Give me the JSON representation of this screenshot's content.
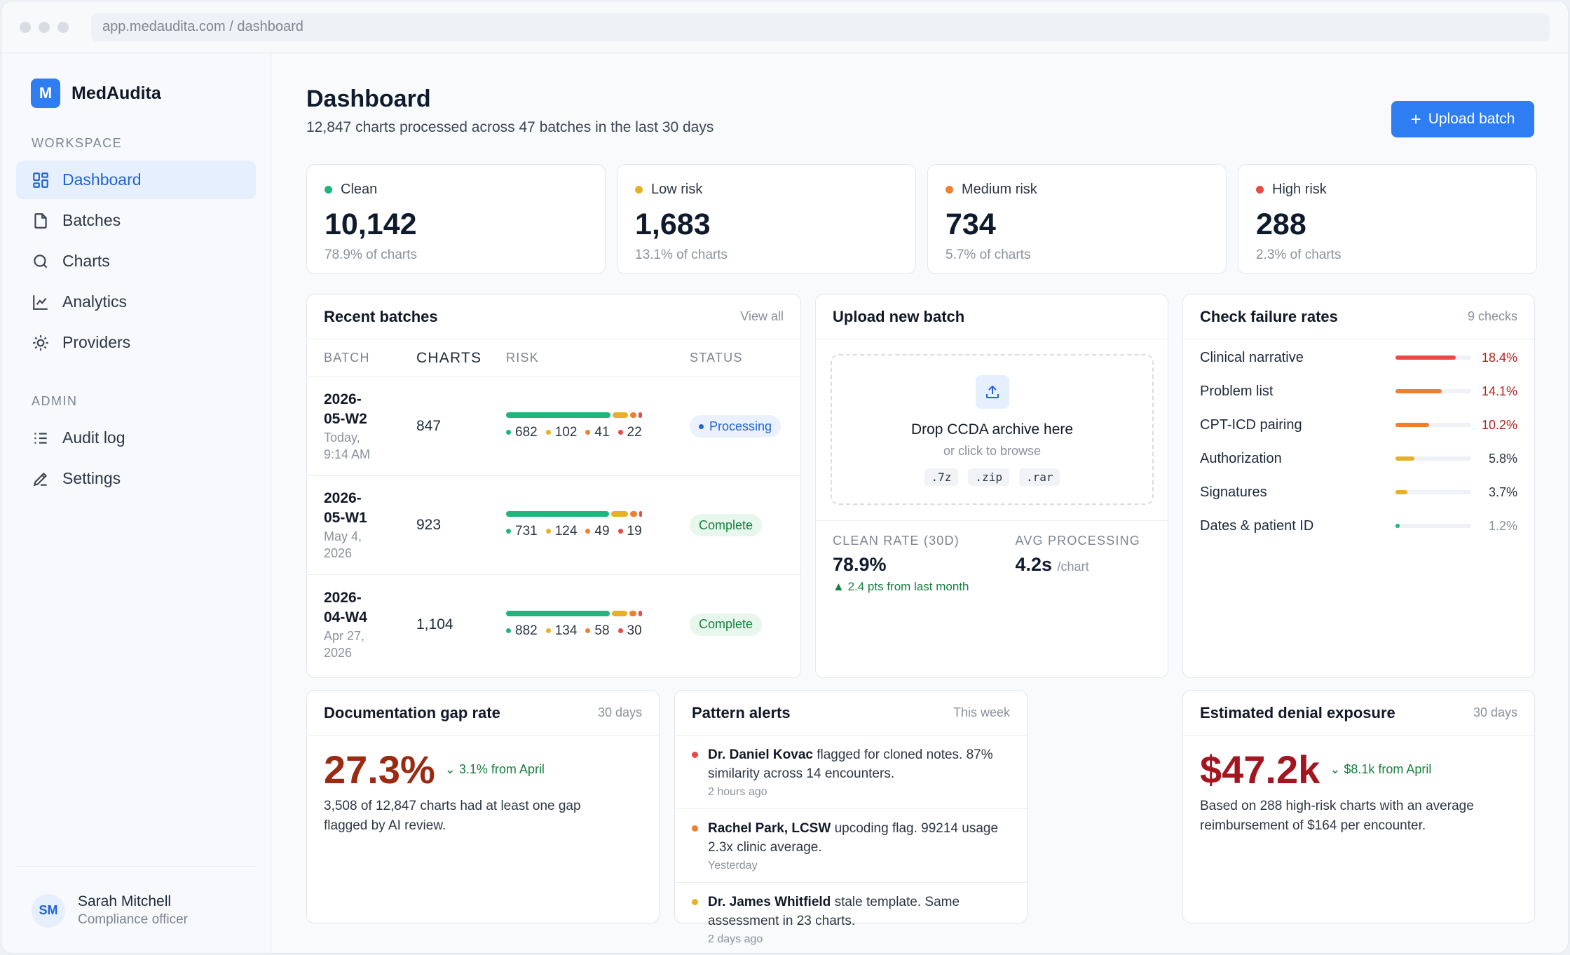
{
  "browser": {
    "url": "app.medaudita.com / dashboard"
  },
  "brand": {
    "logo_letter": "M",
    "name": "MedAudita"
  },
  "sidebar": {
    "workspace_label": "WORKSPACE",
    "admin_label": "ADMIN",
    "items": [
      {
        "label": "Dashboard",
        "icon": "grid-icon"
      },
      {
        "label": "Batches",
        "icon": "file-icon"
      },
      {
        "label": "Charts",
        "icon": "search-icon"
      },
      {
        "label": "Analytics",
        "icon": "line-chart-icon"
      },
      {
        "label": "Providers",
        "icon": "sun-icon"
      }
    ],
    "admin_items": [
      {
        "label": "Audit log",
        "icon": "list-icon"
      },
      {
        "label": "Settings",
        "icon": "pencil-icon"
      }
    ],
    "user": {
      "initials": "SM",
      "name": "Sarah Mitchell",
      "role": "Compliance officer"
    }
  },
  "header": {
    "title": "Dashboard",
    "subtitle": "12,847 charts processed across 47 batches in the last 30 days",
    "upload_label": "Upload batch",
    "upload_icon": "plus-icon"
  },
  "stats": [
    {
      "label": "Clean",
      "value": "10,142",
      "pct": "78.9% of charts",
      "color": "#1fb57c"
    },
    {
      "label": "Low risk",
      "value": "1,683",
      "pct": "13.1% of charts",
      "color": "#e6b124"
    },
    {
      "label": "Medium risk",
      "value": "734",
      "pct": "5.7% of charts",
      "color": "#f07f2c"
    },
    {
      "label": "High risk",
      "value": "288",
      "pct": "2.3% of charts",
      "color": "#e84a45"
    }
  ],
  "recent_batches": {
    "title": "Recent batches",
    "view_all": "View all",
    "columns": [
      "BATCH",
      "CHARTS",
      "RISK",
      "STATUS"
    ],
    "rows": [
      {
        "id": "2026-05-W2",
        "id_line1": "2026-",
        "id_line2": "05-W2",
        "date_line1": "Today,",
        "date_line2": "9:14 AM",
        "charts": "847",
        "clean": "682",
        "low": "102",
        "med": "41",
        "high": "22",
        "status": "Processing"
      },
      {
        "id": "2026-05-W1",
        "id_line1": "2026-",
        "id_line2": "05-W1",
        "date_line1": "May 4,",
        "date_line2": "2026",
        "charts": "923",
        "clean": "731",
        "low": "124",
        "med": "49",
        "high": "19",
        "status": "Complete"
      },
      {
        "id": "2026-04-W4",
        "id_line1": "2026-",
        "id_line2": "04-W4",
        "date_line1": "Apr 27,",
        "date_line2": "2026",
        "charts": "1,104",
        "clean": "882",
        "low": "134",
        "med": "58",
        "high": "30",
        "status": "Complete"
      }
    ]
  },
  "upload": {
    "title": "Upload new batch",
    "drop_title": "Drop CCDA archive here",
    "drop_sub": "or click to browse",
    "extensions": [
      ".7z",
      ".zip",
      ".rar"
    ],
    "clean_rate_label": "CLEAN RATE (30D)",
    "clean_rate_value": "78.9%",
    "clean_rate_delta": "2.4 pts from last month",
    "avg_label": "AVG PROCESSING",
    "avg_value": "4.2s",
    "avg_unit": "/chart"
  },
  "checks": {
    "title": "Check failure rates",
    "meta": "9 checks",
    "items": [
      {
        "name": "Clinical narrative",
        "value": "18.4%",
        "fraction": 0.184,
        "color": "#e84a45",
        "text_color": "#b4231f"
      },
      {
        "name": "Problem list",
        "value": "14.1%",
        "fraction": 0.141,
        "color": "#f07f2c",
        "text_color": "#b4231f"
      },
      {
        "name": "CPT-ICD pairing",
        "value": "10.2%",
        "fraction": 0.102,
        "color": "#f07f2c",
        "text_color": "#b4231f"
      },
      {
        "name": "Authorization",
        "value": "5.8%",
        "fraction": 0.058,
        "color": "#e6b124",
        "text_color": "#2d3644"
      },
      {
        "name": "Signatures",
        "value": "3.7%",
        "fraction": 0.037,
        "color": "#e6b124",
        "text_color": "#2d3644"
      },
      {
        "name": "Dates & patient ID",
        "value": "1.2%",
        "fraction": 0.012,
        "color": "#1fb57c",
        "text_color": "#8a919c"
      }
    ]
  },
  "gap": {
    "title": "Documentation gap rate",
    "meta": "30 days",
    "value": "27.3%",
    "delta": "3.1% from April",
    "desc": "3,508 of 12,847 charts had at least one gap flagged by AI review."
  },
  "alerts": {
    "title": "Pattern alerts",
    "meta": "This week",
    "items": [
      {
        "who": "Dr. Daniel Kovac",
        "text": "flagged for cloned notes. 87% similarity across 14 encounters.",
        "time": "2 hours ago",
        "color": "#e84a45"
      },
      {
        "who": "Rachel Park, LCSW",
        "text": "upcoding flag. 99214 usage 2.3x clinic average.",
        "time": "Yesterday",
        "color": "#f07f2c"
      },
      {
        "who": "Dr. James Whitfield",
        "text": "stale template. Same assessment in 23 charts.",
        "time": "2 days ago",
        "color": "#e6b124"
      }
    ]
  },
  "denial": {
    "title": "Estimated denial exposure",
    "meta": "30 days",
    "value": "$47.2k",
    "delta": "$8.1k from April",
    "desc": "Based on 288 high-risk charts with an average reimbursement of $164 per encounter."
  }
}
